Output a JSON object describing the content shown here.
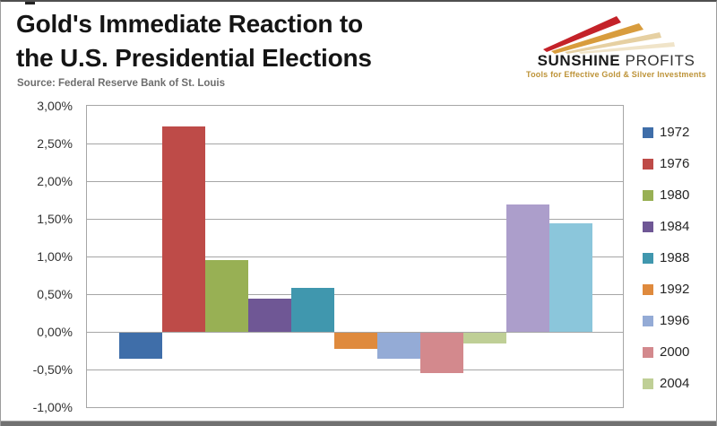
{
  "header": {
    "title_line1": "Gold's Immediate Reaction to",
    "title_line2": "the U.S. Presidential Elections",
    "source": "Source: Federal Reserve Bank of St. Louis"
  },
  "logo": {
    "name_bold": "SUNSHINE",
    "name_light": "PROFITS",
    "tagline": "Tools for Effective Gold & Silver Investments",
    "colors": {
      "ray_red": "#C42229",
      "ray_gold": "#D89C3D",
      "ray_pale": "#E6D0A2",
      "ray_shadow": "#F0E4C9",
      "tagline": "#BD9338"
    }
  },
  "chart_data": {
    "type": "bar",
    "title": "Gold's Immediate Reaction to the U.S. Presidential Elections",
    "xlabel": "",
    "ylabel": "",
    "value_unit": "%",
    "ylim": [
      -1.0,
      3.0
    ],
    "ytick_step": 0.5,
    "y_tick_labels": [
      "3,00%",
      "2,50%",
      "2,00%",
      "1,50%",
      "1,00%",
      "0,50%",
      "0,00%",
      "-0,50%",
      "-1,00%"
    ],
    "grid": true,
    "legend_position": "right",
    "bars": [
      {
        "year": "1972",
        "value": -0.35,
        "color": "#3F6EA9"
      },
      {
        "year": "1976",
        "value": 2.73,
        "color": "#BE4B48"
      },
      {
        "year": "1980",
        "value": 0.95,
        "color": "#98B054"
      },
      {
        "year": "1984",
        "value": 0.44,
        "color": "#6F5795"
      },
      {
        "year": "1988",
        "value": 0.58,
        "color": "#4097AE"
      },
      {
        "year": "1992",
        "value": -0.22,
        "color": "#DF8A3D"
      },
      {
        "year": "1996",
        "value": -0.34,
        "color": "#94ABD6"
      },
      {
        "year": "2000",
        "value": -0.54,
        "color": "#D3898D"
      },
      {
        "year": "2004",
        "value": -0.14,
        "color": "#BFCF96"
      },
      {
        "year": "",
        "value": 1.69,
        "color": "#AC9ECB"
      },
      {
        "year": "",
        "value": 1.44,
        "color": "#8BC6DB"
      }
    ],
    "legend_items": [
      {
        "label": "1972",
        "color": "#3F6EA9"
      },
      {
        "label": "1976",
        "color": "#BE4B48"
      },
      {
        "label": "1980",
        "color": "#98B054"
      },
      {
        "label": "1984",
        "color": "#6F5795"
      },
      {
        "label": "1988",
        "color": "#4097AE"
      },
      {
        "label": "1992",
        "color": "#DF8A3D"
      },
      {
        "label": "1996",
        "color": "#94ABD6"
      },
      {
        "label": "2000",
        "color": "#D3898D"
      },
      {
        "label": "2004",
        "color": "#BFCF96"
      }
    ]
  }
}
